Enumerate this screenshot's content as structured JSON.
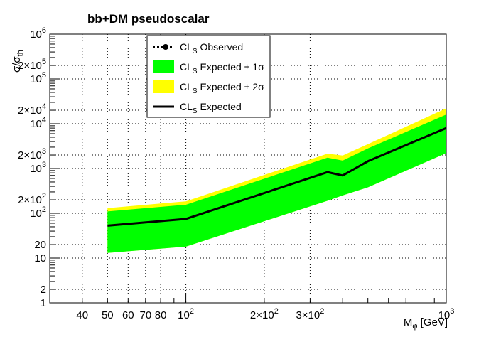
{
  "chart_data": {
    "type": "area",
    "title": "bb+DM pseudoscalar",
    "xlabel": "M_φ [GeV]",
    "ylabel": "σ/σ_th",
    "xscale": "log",
    "yscale": "log",
    "xlim": [
      30,
      1000
    ],
    "ylim": [
      1,
      1000000
    ],
    "grid": true,
    "x_tick_labels": [
      "40",
      "50",
      "60",
      "70",
      "80",
      "10^2",
      "2×10^2",
      "3×10^2",
      "10^3"
    ],
    "x_tick_values": [
      40,
      50,
      60,
      70,
      80,
      100,
      200,
      300,
      1000
    ],
    "y_tick_labels": [
      "1",
      "2",
      "10",
      "20",
      "10^2",
      "2×10^2",
      "10^3",
      "2×10^3",
      "10^4",
      "2×10^4",
      "10^5",
      "2×10^5",
      "10^6"
    ],
    "y_tick_values": [
      1,
      2,
      10,
      20,
      100,
      200,
      1000,
      2000,
      10000,
      20000,
      100000,
      200000,
      1000000
    ],
    "legend": {
      "placement": "top-center",
      "entries": [
        {
          "label": "CL_S Observed",
          "style": "dotted-marker",
          "color": "#000000"
        },
        {
          "label": "CL_S  Expected ± 1σ",
          "style": "fill",
          "color": "#00ff00"
        },
        {
          "label": "CL_S  Expected ± 2σ",
          "style": "fill",
          "color": "#ffff00"
        },
        {
          "label": "CL_S  Expected",
          "style": "line",
          "color": "#000000"
        }
      ]
    },
    "x": [
      50,
      100,
      350,
      400,
      500,
      1000
    ],
    "series": [
      {
        "name": "CL_S  Expected",
        "values": [
          53,
          75,
          830,
          700,
          1450,
          8000
        ],
        "color": "#000000"
      },
      {
        "name": "CL_S  Expected ± 1σ",
        "lower": [
          13,
          18,
          190,
          250,
          380,
          2200
        ],
        "upper": [
          110,
          155,
          1750,
          1500,
          2800,
          16000
        ],
        "color": "#00ff00"
      },
      {
        "name": "CL_S  Expected ± 2σ",
        "lower": [
          13,
          18,
          190,
          250,
          380,
          2200
        ],
        "upper": [
          130,
          185,
          2150,
          1950,
          3500,
          22000
        ],
        "color": "#ffff00"
      }
    ]
  }
}
